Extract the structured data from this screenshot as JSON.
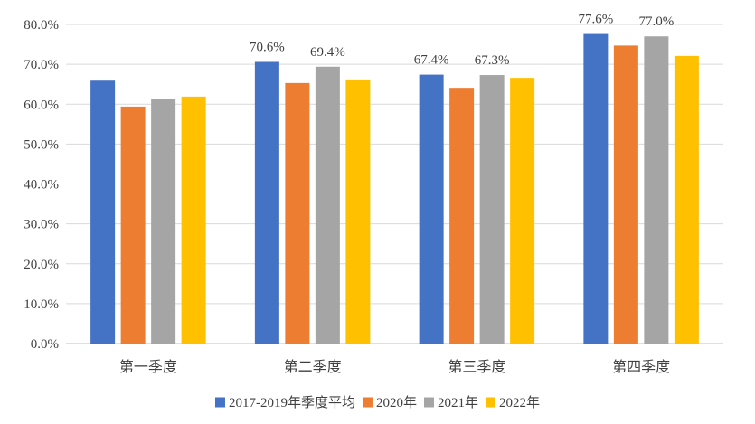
{
  "chart_data": {
    "type": "bar",
    "title": "",
    "xlabel": "",
    "ylabel": "",
    "ylim": [
      0,
      80
    ],
    "y_ticks": [
      "0.0%",
      "10.0%",
      "20.0%",
      "30.0%",
      "40.0%",
      "50.0%",
      "60.0%",
      "70.0%",
      "80.0%"
    ],
    "y_tick_values": [
      0,
      10,
      20,
      30,
      40,
      50,
      60,
      70,
      80
    ],
    "grid": true,
    "legend_position": "bottom",
    "categories": [
      "第一季度",
      "第二季度",
      "第三季度",
      "第四季度"
    ],
    "series": [
      {
        "name": "2017-2019年季度平均",
        "color": "#4472C4",
        "values": [
          65.9,
          70.6,
          67.4,
          77.6
        ],
        "labels": [
          "",
          "70.6%",
          "67.4%",
          "77.6%"
        ]
      },
      {
        "name": "2020年",
        "color": "#ED7D31",
        "values": [
          59.4,
          65.3,
          64.1,
          74.7
        ],
        "labels": [
          "",
          "",
          "",
          ""
        ]
      },
      {
        "name": "2021年",
        "color": "#A5A5A5",
        "values": [
          61.4,
          69.4,
          67.3,
          77.0
        ],
        "labels": [
          "",
          "69.4%",
          "67.3%",
          "77.0%"
        ]
      },
      {
        "name": "2022年",
        "color": "#FFC000",
        "values": [
          61.9,
          66.2,
          66.6,
          72.1
        ],
        "labels": [
          "",
          "",
          "",
          ""
        ]
      }
    ]
  }
}
